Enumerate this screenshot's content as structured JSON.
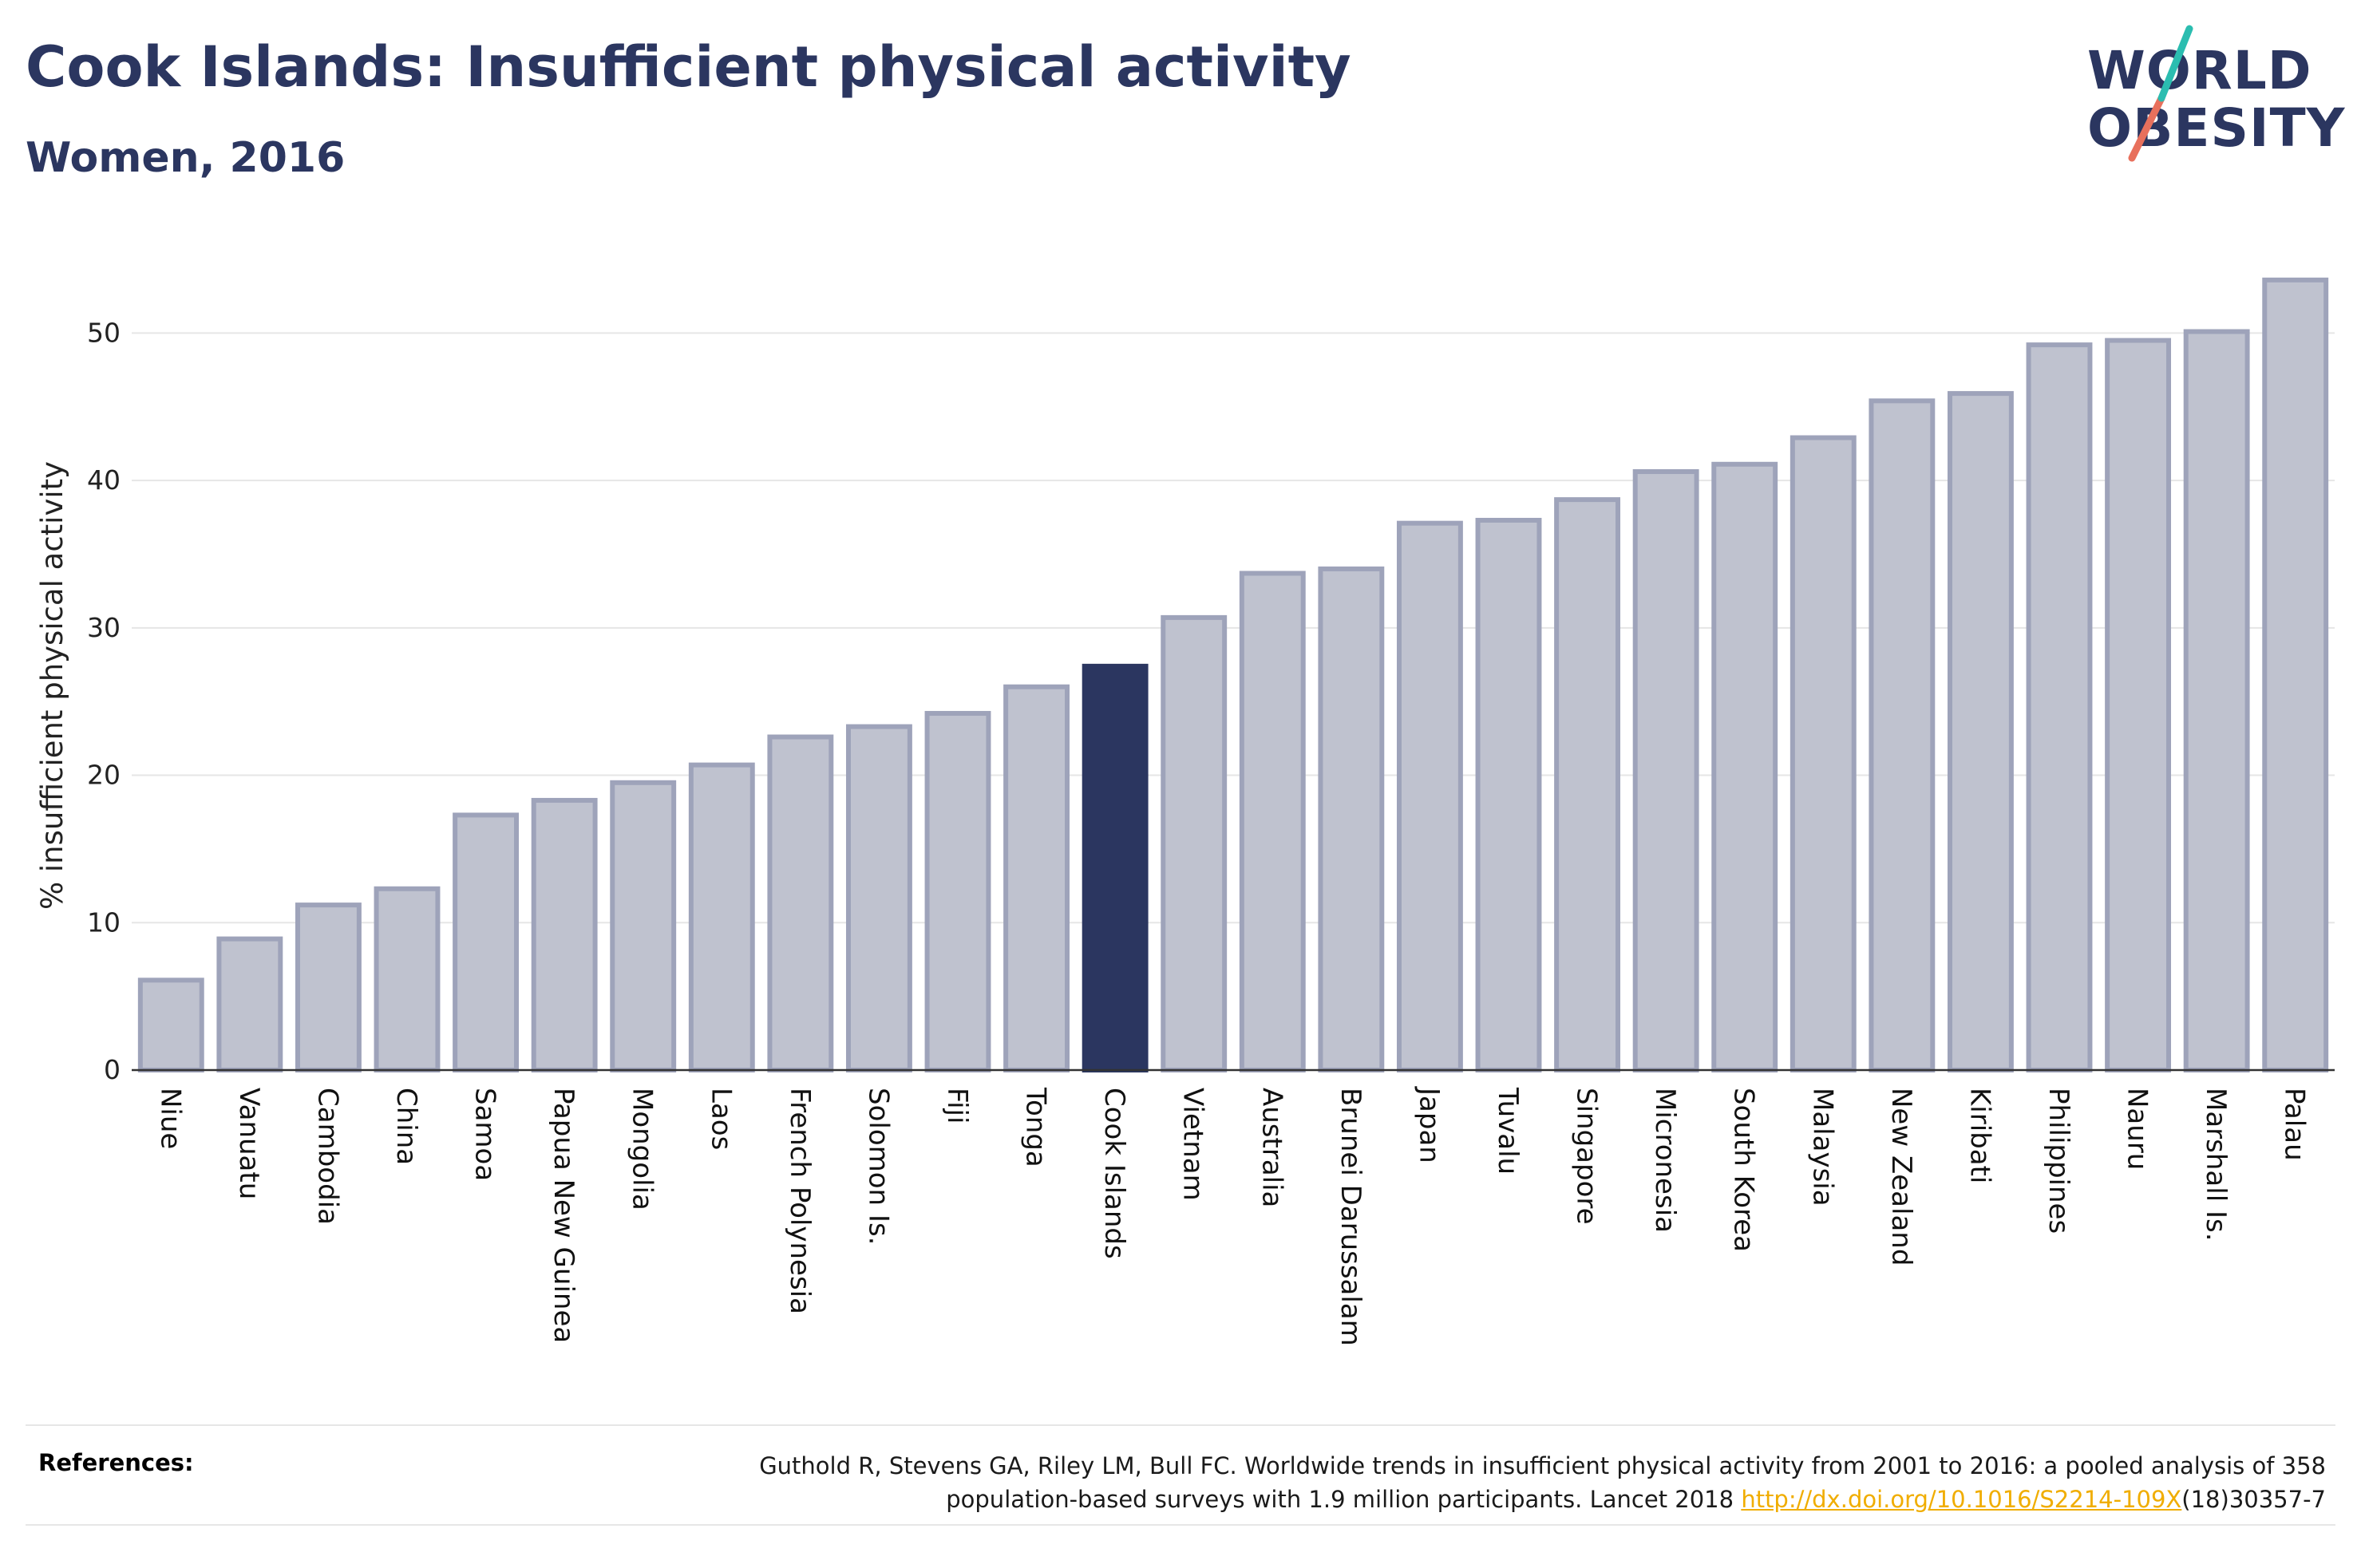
{
  "header": {
    "title": "Cook Islands: Insufficient physical activity",
    "subtitle": "Women, 2016"
  },
  "logo": {
    "line1": "WORLD",
    "line2": "OBESITY"
  },
  "colors": {
    "text": "#2b3660",
    "highlight_bar": "#2b3660",
    "bar_fill": "#bfc2cf",
    "bar_stroke": "#9ea3ba",
    "gridline": "#e6e6e6",
    "logo_slash_teal": "#2bbdb0",
    "logo_slash_coral": "#e8705c",
    "link": "#f0ad00"
  },
  "chart_data": {
    "type": "bar",
    "title": "",
    "xlabel": "",
    "ylabel": "% insufficient physical activity",
    "ylim": [
      0,
      55
    ],
    "yticks": [
      0,
      10,
      20,
      30,
      40,
      50
    ],
    "grid": true,
    "highlight": "Cook Islands",
    "categories": [
      "Niue",
      "Vanuatu",
      "Cambodia",
      "China",
      "Samoa",
      "Papua New Guinea",
      "Mongolia",
      "Laos",
      "French Polynesia",
      "Solomon Is.",
      "Fiji",
      "Tonga",
      "Cook Islands",
      "Vietnam",
      "Australia",
      "Brunei Darussalam",
      "Japan",
      "Tuvalu",
      "Singapore",
      "Micronesia",
      "South Korea",
      "Malaysia",
      "New Zealand",
      "Kiribati",
      "Philippines",
      "Nauru",
      "Marshall Is.",
      "Palau"
    ],
    "values": [
      6.1,
      8.9,
      11.2,
      12.3,
      17.3,
      18.3,
      19.5,
      20.7,
      22.6,
      23.3,
      24.2,
      26.0,
      27.4,
      30.7,
      33.7,
      34.0,
      37.1,
      37.3,
      38.7,
      40.6,
      41.1,
      42.9,
      45.4,
      45.9,
      49.2,
      49.5,
      50.1,
      53.6
    ]
  },
  "references": {
    "label": "References:",
    "line1": "Guthold R, Stevens GA, Riley LM, Bull FC. Worldwide trends in insufficient physical activity from 2001 to 2016: a pooled analysis of 358",
    "line2_prefix": "population-based surveys with 1.9 million participants. Lancet 2018 ",
    "link": "http://dx.doi.org/10.1016/S2214-109X",
    "line2_suffix": "(18)30357-7"
  }
}
